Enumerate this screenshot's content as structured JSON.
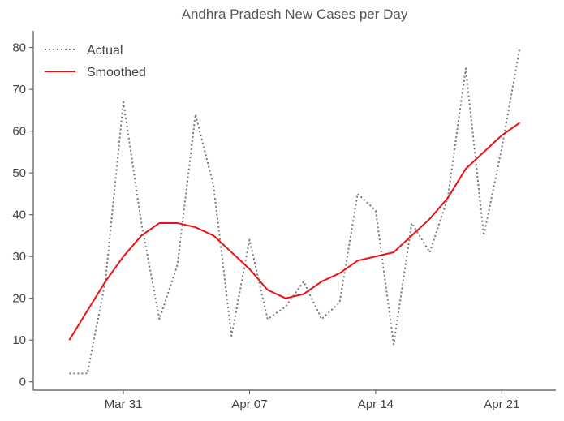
{
  "chart_data": {
    "type": "line",
    "title": "Andhra Pradesh New Cases per Day",
    "xlabel": "",
    "ylabel": "",
    "x_start": "2020-03-28",
    "x_tick_labels": [
      {
        "date": "2020-03-31",
        "label": "Mar 31"
      },
      {
        "date": "2020-04-07",
        "label": "Apr 07"
      },
      {
        "date": "2020-04-14",
        "label": "Apr 14"
      },
      {
        "date": "2020-04-21",
        "label": "Apr 21"
      }
    ],
    "xlim": [
      "2020-03-26",
      "2020-04-24"
    ],
    "ylim": [
      -2,
      84
    ],
    "y_ticks": [
      0,
      10,
      20,
      30,
      40,
      50,
      60,
      70,
      80
    ],
    "grid": false,
    "legend_position": "top-left",
    "series": [
      {
        "name": "Actual",
        "style": "dotted",
        "color": "#777777",
        "values": [
          2,
          2,
          24,
          67,
          38,
          15,
          28,
          64,
          47,
          11,
          34,
          15,
          18,
          24,
          15,
          19,
          45,
          41,
          9,
          38,
          31,
          44,
          75,
          35,
          56,
          80
        ]
      },
      {
        "name": "Smoothed",
        "style": "solid",
        "color": "#ee1111",
        "values": [
          10,
          17,
          24,
          30,
          35,
          38,
          38,
          37,
          35,
          31,
          27,
          22,
          20,
          21,
          24,
          26,
          29,
          30,
          31,
          35,
          39,
          44,
          51,
          55,
          59,
          62
        ]
      }
    ]
  }
}
